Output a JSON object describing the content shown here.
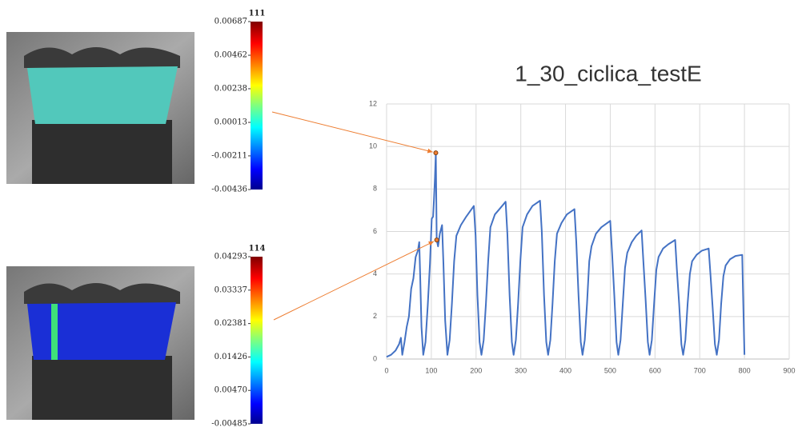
{
  "chart_data": {
    "type": "line",
    "title": "1_30_ciclica_testE",
    "x": [
      0,
      10,
      20,
      28,
      32,
      35,
      40,
      45,
      50,
      55,
      60,
      65,
      70,
      73,
      75,
      78,
      82,
      87,
      92,
      97,
      101,
      104,
      106,
      108,
      110,
      112,
      115,
      119,
      124,
      127,
      131,
      136,
      141,
      146,
      151,
      156,
      166,
      178,
      195,
      199,
      203,
      208,
      212,
      217,
      222,
      227,
      232,
      242,
      254,
      266,
      270,
      275,
      280,
      284,
      289,
      294,
      299,
      304,
      314,
      326,
      343,
      347,
      352,
      357,
      361,
      366,
      371,
      376,
      381,
      391,
      403,
      420,
      424,
      429,
      434,
      438,
      443,
      448,
      453,
      458,
      468,
      480,
      500,
      504,
      509,
      514,
      518,
      523,
      528,
      533,
      538,
      548,
      558,
      570,
      574,
      579,
      584,
      588,
      593,
      598,
      603,
      608,
      618,
      630,
      645,
      649,
      654,
      659,
      663,
      668,
      673,
      678,
      683,
      693,
      705,
      720,
      724,
      729,
      734,
      738,
      743,
      748,
      753,
      758,
      768,
      780,
      795,
      797,
      800
    ],
    "series": [
      {
        "color": "#4472c4",
        "values": [
          0.1,
          0.2,
          0.4,
          0.7,
          1.0,
          0.2,
          0.8,
          1.5,
          2.0,
          3.3,
          3.8,
          4.8,
          5.1,
          5.5,
          4.0,
          1.5,
          0.2,
          0.8,
          2.5,
          4.5,
          6.6,
          6.7,
          7.5,
          8.5,
          9.7,
          5.6,
          5.3,
          5.9,
          6.3,
          4.5,
          1.8,
          0.2,
          0.9,
          2.6,
          4.6,
          5.8,
          6.3,
          6.7,
          7.2,
          5.8,
          3.0,
          0.8,
          0.2,
          0.9,
          2.6,
          4.6,
          6.2,
          6.8,
          7.1,
          7.4,
          5.9,
          3.0,
          0.8,
          0.2,
          0.9,
          2.6,
          4.6,
          6.2,
          6.8,
          7.2,
          7.45,
          6.0,
          3.0,
          0.8,
          0.2,
          0.9,
          2.6,
          4.6,
          5.9,
          6.4,
          6.8,
          7.05,
          5.5,
          3.0,
          0.8,
          0.2,
          0.9,
          2.6,
          4.6,
          5.3,
          5.9,
          6.2,
          6.5,
          5.0,
          3.0,
          0.8,
          0.2,
          0.9,
          2.6,
          4.3,
          5.0,
          5.5,
          5.8,
          6.05,
          4.6,
          2.8,
          0.8,
          0.2,
          0.9,
          2.6,
          4.2,
          4.8,
          5.2,
          5.4,
          5.6,
          4.2,
          2.6,
          0.7,
          0.2,
          0.9,
          2.6,
          4.0,
          4.6,
          4.9,
          5.1,
          5.2,
          4.0,
          2.4,
          0.7,
          0.2,
          0.9,
          2.6,
          3.9,
          4.4,
          4.7,
          4.85,
          4.9,
          3.0,
          0.2
        ]
      }
    ],
    "highlights": [
      {
        "x": 110,
        "y": 9.7,
        "color": "#ed7d31"
      },
      {
        "x": 112,
        "y": 5.6,
        "color": "#ed7d31"
      }
    ],
    "xlim": [
      0,
      900
    ],
    "xticks": [
      0,
      100,
      200,
      300,
      400,
      500,
      600,
      700,
      800,
      900
    ],
    "ylim": [
      0,
      12
    ],
    "yticks": [
      0,
      2,
      4,
      6,
      8,
      10,
      12
    ],
    "grid": true
  },
  "colorbars": [
    {
      "frame": "111",
      "ticks": [
        0.00687,
        0.00462,
        0.00238,
        0.00013,
        -0.00211,
        -0.00436
      ]
    },
    {
      "frame": "114",
      "ticks": [
        0.04293,
        0.03337,
        0.02381,
        0.01426,
        {
          "value": 0.0047,
          "label": "0.00470"
        },
        -0.00485
      ]
    }
  ]
}
